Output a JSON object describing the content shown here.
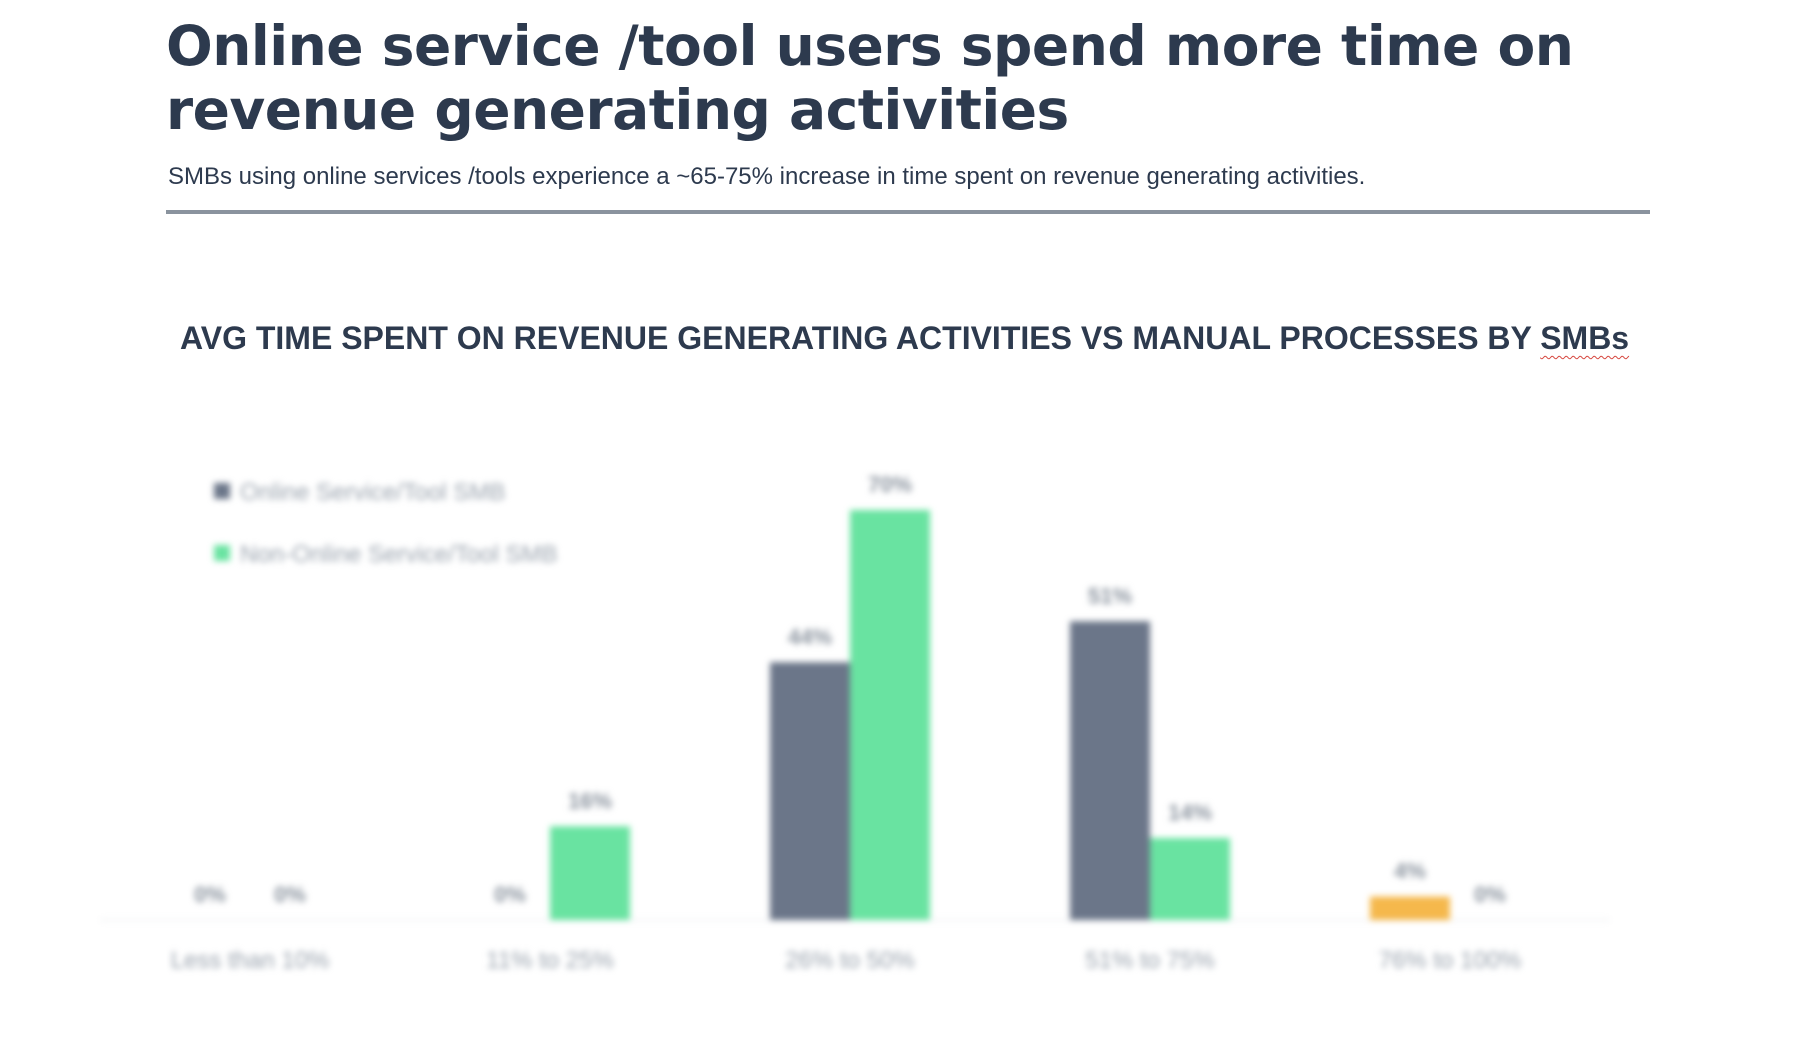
{
  "header": {
    "title": "Online service /tool users spend more time on revenue generating activities",
    "subtitle": "SMBs using online services /tools experience a ~65-75% increase in time spent on revenue generating activities."
  },
  "chart_title": {
    "main": "AVG TIME SPENT ON REVENUE GENERATING ACTIVITIES VS MANUAL PROCESSES BY ",
    "emphasis": "SMBs"
  },
  "chart_data": {
    "type": "bar",
    "title": "AVG TIME SPENT ON REVENUE GENERATING ACTIVITIES VS MANUAL PROCESSES BY SMBs",
    "categories": [
      "Less than 10%",
      "11% to 25%",
      "26% to 50%",
      "51% to 75%",
      "76% to 100%"
    ],
    "series": [
      {
        "name": "Online Service/Tool SMB",
        "color": "#6b7689",
        "values": [
          0,
          0,
          44,
          51,
          4
        ],
        "labels": [
          "0%",
          "0%",
          "44%",
          "51%",
          "4%"
        ],
        "point_colors": [
          "#6b7689",
          "#6b7689",
          "#6b7689",
          "#6b7689",
          "#f5b84c"
        ]
      },
      {
        "name": "Non-Online Service/Tool SMB",
        "color": "#69e3a1",
        "values": [
          0,
          16,
          70,
          14,
          0
        ],
        "labels": [
          "0%",
          "16%",
          "70%",
          "14%",
          "0%"
        ]
      }
    ],
    "ylim": [
      0,
      70
    ],
    "grid": false,
    "legend": "top-left",
    "xlabel": "",
    "ylabel": ""
  }
}
